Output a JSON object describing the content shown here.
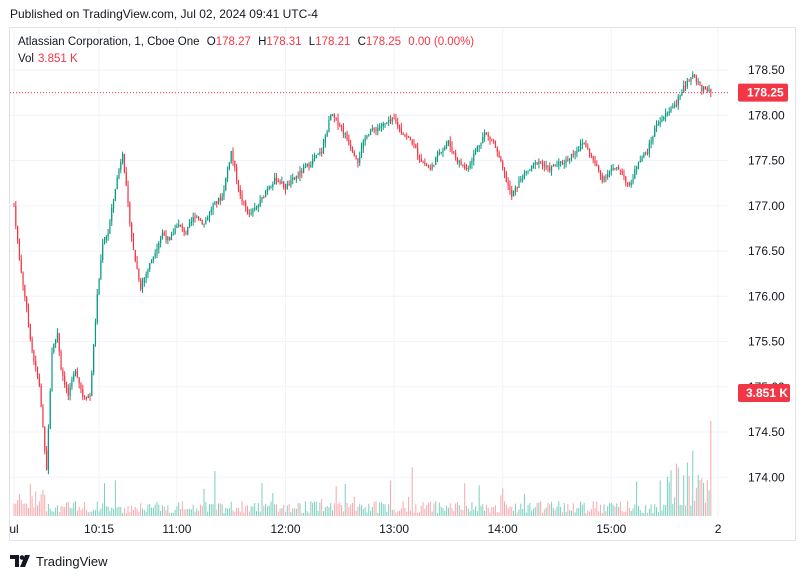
{
  "header": {
    "published": "Published on TradingView.com, Jul 02, 2024 09:41 UTC-4"
  },
  "legend": {
    "symbol": "Atlassian Corporation, 1, Cboe One",
    "o_label": "O",
    "o_value": "178.27",
    "h_label": "H",
    "h_value": "178.31",
    "l_label": "L",
    "l_value": "178.21",
    "c_label": "C",
    "c_value": "178.25",
    "change": "0.00 (0.00%)",
    "vol_label": "Vol",
    "vol_value": "3.851 K"
  },
  "footer": {
    "brand": "TradingView"
  },
  "colors": {
    "up": "#089981",
    "down": "#f23645",
    "up_vol": "#7dcfc0",
    "down_vol": "#f7a9ae",
    "grid": "#f0f3fa"
  },
  "chart_data": {
    "type": "candlestick",
    "y_ticks": [
      "178.50",
      "178.00",
      "177.50",
      "177.00",
      "176.50",
      "176.00",
      "175.50",
      "175.00",
      "174.50",
      "174.00"
    ],
    "x_ticks": [
      {
        "label": "ul",
        "t": 0
      },
      {
        "label": "10:15",
        "t": 47
      },
      {
        "label": "11:00",
        "t": 90
      },
      {
        "label": "12:00",
        "t": 150
      },
      {
        "label": "13:00",
        "t": 210
      },
      {
        "label": "14:00",
        "t": 270
      },
      {
        "label": "15:00",
        "t": 330
      },
      {
        "label": "2",
        "t": 389
      }
    ],
    "ylim": [
      173.6,
      178.9
    ],
    "last_price": "178.25",
    "last_price_value": 178.25,
    "last_volume": "3.851 K",
    "close_path": [
      [
        0,
        177.0
      ],
      [
        3,
        176.4
      ],
      [
        6,
        176.0
      ],
      [
        10,
        175.4
      ],
      [
        14,
        175.0
      ],
      [
        18,
        174.1
      ],
      [
        21,
        175.4
      ],
      [
        24,
        175.6
      ],
      [
        26,
        175.2
      ],
      [
        30,
        174.9
      ],
      [
        34,
        175.2
      ],
      [
        38,
        174.9
      ],
      [
        42,
        174.9
      ],
      [
        46,
        176.0
      ],
      [
        49,
        176.6
      ],
      [
        52,
        176.7
      ],
      [
        56,
        177.2
      ],
      [
        60,
        177.6
      ],
      [
        63,
        177.0
      ],
      [
        66,
        176.5
      ],
      [
        70,
        176.1
      ],
      [
        74,
        176.3
      ],
      [
        78,
        176.5
      ],
      [
        82,
        176.7
      ],
      [
        86,
        176.6
      ],
      [
        90,
        176.8
      ],
      [
        95,
        176.7
      ],
      [
        100,
        176.9
      ],
      [
        105,
        176.8
      ],
      [
        110,
        177.0
      ],
      [
        115,
        177.1
      ],
      [
        120,
        177.6
      ],
      [
        125,
        177.1
      ],
      [
        130,
        176.9
      ],
      [
        135,
        177.0
      ],
      [
        140,
        177.2
      ],
      [
        145,
        177.3
      ],
      [
        150,
        177.2
      ],
      [
        155,
        177.3
      ],
      [
        160,
        177.4
      ],
      [
        165,
        177.5
      ],
      [
        170,
        177.6
      ],
      [
        175,
        178.0
      ],
      [
        180,
        177.9
      ],
      [
        185,
        177.7
      ],
      [
        190,
        177.5
      ],
      [
        195,
        177.8
      ],
      [
        200,
        177.85
      ],
      [
        205,
        177.9
      ],
      [
        210,
        177.95
      ],
      [
        215,
        177.8
      ],
      [
        220,
        177.7
      ],
      [
        225,
        177.5
      ],
      [
        230,
        177.4
      ],
      [
        235,
        177.6
      ],
      [
        240,
        177.7
      ],
      [
        245,
        177.5
      ],
      [
        250,
        177.4
      ],
      [
        255,
        177.6
      ],
      [
        260,
        177.8
      ],
      [
        265,
        177.7
      ],
      [
        270,
        177.4
      ],
      [
        275,
        177.1
      ],
      [
        280,
        177.3
      ],
      [
        285,
        177.4
      ],
      [
        290,
        177.5
      ],
      [
        295,
        177.4
      ],
      [
        300,
        177.45
      ],
      [
        305,
        177.5
      ],
      [
        310,
        177.6
      ],
      [
        315,
        177.7
      ],
      [
        320,
        177.5
      ],
      [
        325,
        177.3
      ],
      [
        330,
        177.4
      ],
      [
        335,
        177.4
      ],
      [
        340,
        177.2
      ],
      [
        345,
        177.5
      ],
      [
        350,
        177.6
      ],
      [
        355,
        177.9
      ],
      [
        360,
        178.0
      ],
      [
        365,
        178.1
      ],
      [
        370,
        178.3
      ],
      [
        375,
        178.45
      ],
      [
        380,
        178.3
      ],
      [
        385,
        178.25
      ]
    ],
    "volume_ylim": [
      0,
      120
    ]
  }
}
